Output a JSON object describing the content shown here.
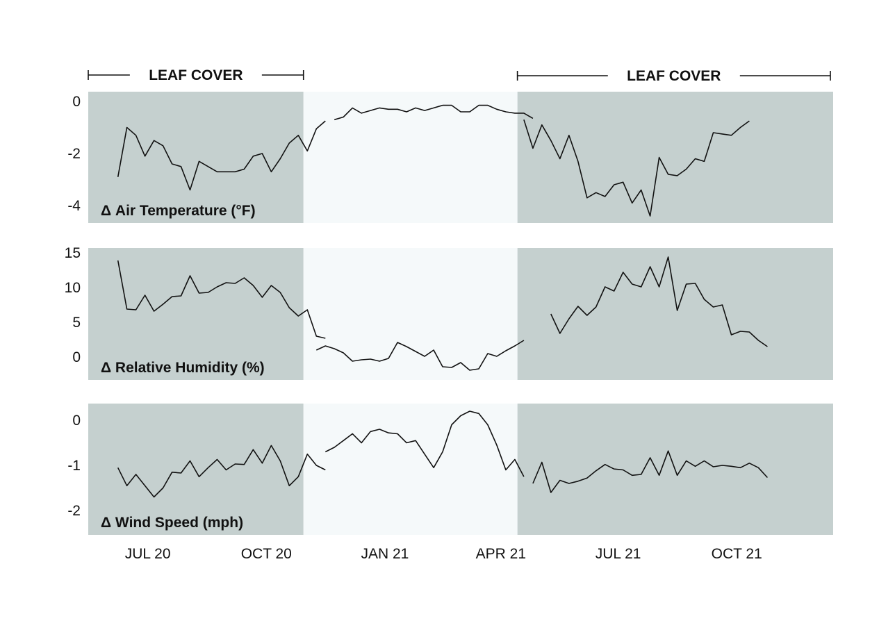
{
  "colors": {
    "leaf_band": "#c5d0cf",
    "bare_band": "#f5f9fa",
    "line": "#111111",
    "text": "#111111"
  },
  "chart_data": {
    "type": "line",
    "leaf_cover_label": "LEAF COVER",
    "leaf_cover_periods": [
      {
        "label": "LEAF COVER",
        "start": "2020-06-01",
        "end": "2020-11-15"
      },
      {
        "label": "LEAF COVER",
        "start": "2021-04-30",
        "end": "2021-12-31"
      }
    ],
    "bare_period": {
      "start": "2020-11-15",
      "end": "2021-04-30"
    },
    "x_range": [
      "2020-06-01",
      "2021-12-31"
    ],
    "x_ticks": [
      {
        "label": "JUL 20",
        "date": "2020-07-01"
      },
      {
        "label": "OCT 20",
        "date": "2020-10-01"
      },
      {
        "label": "JAN 21",
        "date": "2021-01-01"
      },
      {
        "label": "APR 21",
        "date": "2021-04-01"
      },
      {
        "label": "JUL 21",
        "date": "2021-07-01"
      },
      {
        "label": "OCT 21",
        "date": "2021-10-01"
      }
    ],
    "x": [
      "2020-06-24",
      "2020-07-01",
      "2020-07-08",
      "2020-07-15",
      "2020-07-22",
      "2020-07-29",
      "2020-08-05",
      "2020-08-12",
      "2020-08-19",
      "2020-08-26",
      "2020-09-02",
      "2020-09-09",
      "2020-09-16",
      "2020-09-23",
      "2020-09-30",
      "2020-10-07",
      "2020-10-14",
      "2020-10-21",
      "2020-10-28",
      "2020-11-04",
      "2020-11-11",
      "2020-11-18",
      "2020-11-25",
      "2020-12-02",
      "2020-12-09",
      "2020-12-16",
      "2020-12-23",
      "2020-12-30",
      "2021-01-06",
      "2021-01-13",
      "2021-01-20",
      "2021-01-27",
      "2021-02-03",
      "2021-02-10",
      "2021-02-17",
      "2021-02-24",
      "2021-03-03",
      "2021-03-10",
      "2021-03-17",
      "2021-03-24",
      "2021-03-31",
      "2021-04-07",
      "2021-04-14",
      "2021-04-21",
      "2021-04-28",
      "2021-05-05",
      "2021-05-12",
      "2021-05-19",
      "2021-05-26",
      "2021-06-02",
      "2021-06-09",
      "2021-06-16",
      "2021-06-23",
      "2021-06-30",
      "2021-07-07",
      "2021-07-14",
      "2021-07-21",
      "2021-07-28",
      "2021-08-04",
      "2021-08-11",
      "2021-08-18",
      "2021-08-25",
      "2021-09-01",
      "2021-09-08",
      "2021-09-15",
      "2021-09-22",
      "2021-09-29",
      "2021-10-06",
      "2021-10-13",
      "2021-10-20",
      "2021-10-27",
      "2021-11-03",
      "2021-11-10",
      "2021-11-17"
    ],
    "panels": [
      {
        "title": "Δ Air Temperature (°F)",
        "yticks": [
          0,
          -2,
          -4
        ],
        "ytick_labels": [
          "0",
          "-2",
          "-4"
        ],
        "ylim": [
          -4.7,
          0.35
        ],
        "series": [
          {
            "start": "2020-06-24",
            "values": [
              -2.9,
              -1.0,
              -1.3,
              -2.1,
              -1.5,
              -1.7,
              -2.4,
              -2.5,
              -3.4,
              -2.3,
              -2.5,
              -2.7,
              -2.7,
              -2.7,
              -2.6,
              -2.1,
              -2.0,
              -2.7,
              -2.2,
              -1.6,
              -1.3,
              -1.9,
              -1.05,
              -0.75
            ]
          },
          {
            "start": "2020-12-09",
            "values": [
              -0.7,
              -0.6,
              -0.25,
              -0.45,
              -0.35,
              -0.25,
              -0.3,
              -0.3,
              -0.4,
              -0.25,
              -0.35,
              -0.25,
              -0.15,
              -0.15,
              -0.4,
              -0.4,
              -0.15,
              -0.15,
              -0.3,
              -0.4,
              -0.45,
              -0.45,
              -0.65
            ]
          },
          {
            "start": "2021-05-05",
            "values": [
              -0.7,
              -1.8,
              -0.9,
              -1.5,
              -2.2,
              -1.3,
              -2.3,
              -3.7,
              -3.5,
              -3.65,
              -3.2,
              -3.1,
              -3.9,
              -3.4,
              -4.4,
              -2.15,
              -2.8,
              -2.85,
              -2.6,
              -2.2,
              -2.3,
              -1.2,
              -1.25,
              -1.3,
              -1.0,
              -0.75
            ]
          }
        ]
      },
      {
        "title": "Δ Relative Humidity (%)",
        "yticks": [
          15,
          10,
          5,
          0
        ],
        "ytick_labels": [
          "15",
          "10",
          "5",
          "0"
        ],
        "ylim": [
          -3.3,
          15.6
        ],
        "series": [
          {
            "start": "2020-06-24",
            "values": [
              13.9,
              6.9,
              6.8,
              8.9,
              6.6,
              7.6,
              8.7,
              8.8,
              11.7,
              9.2,
              9.3,
              10.1,
              10.7,
              10.6,
              11.4,
              10.3,
              8.6,
              10.3,
              9.3,
              7.1,
              5.9,
              6.8,
              3.0,
              2.7
            ]
          },
          {
            "start": "2020-11-25",
            "values": [
              1.0,
              1.6,
              1.2,
              0.6,
              -0.6,
              -0.4,
              -0.3,
              -0.6,
              -0.2,
              2.1,
              1.5,
              0.8,
              0.1,
              1.0,
              -1.4,
              -1.5,
              -0.8,
              -1.9,
              -1.7,
              0.5,
              0.1,
              0.9,
              1.6,
              2.4
            ]
          },
          {
            "start": "2021-05-26",
            "values": [
              6.2,
              3.4,
              5.5,
              7.3,
              6.0,
              7.2,
              10.1,
              9.5,
              12.2,
              10.5,
              10.1,
              13.0,
              10.1,
              14.4,
              6.7,
              10.5,
              10.6,
              8.3,
              7.2,
              7.5,
              3.2,
              3.7,
              3.6,
              2.4,
              1.5
            ]
          }
        ]
      },
      {
        "title": "Δ Wind Speed (mph)",
        "yticks": [
          0,
          -1,
          -2
        ],
        "ytick_labels": [
          "0",
          "-1",
          "-2"
        ],
        "ylim": [
          -2.55,
          0.35
        ],
        "series": [
          {
            "start": "2020-06-24",
            "values": [
              -1.05,
              -1.45,
              -1.2,
              -1.45,
              -1.7,
              -1.5,
              -1.15,
              -1.17,
              -0.9,
              -1.25,
              -1.05,
              -0.87,
              -1.1,
              -0.97,
              -0.98,
              -0.65,
              -0.95,
              -0.56,
              -0.9,
              -1.45,
              -1.25,
              -0.75,
              -1.0,
              -1.1
            ]
          },
          {
            "start": "2020-12-02",
            "values": [
              -0.7,
              -0.6,
              -0.45,
              -0.3,
              -0.5,
              -0.25,
              -0.2,
              -0.28,
              -0.3,
              -0.5,
              -0.45,
              -0.75,
              -1.05,
              -0.7,
              -0.1,
              0.1,
              0.2,
              0.15,
              -0.1,
              -0.55,
              -1.1,
              -0.87,
              -1.25
            ]
          },
          {
            "start": "2021-05-12",
            "values": [
              -1.4,
              -0.93,
              -1.6,
              -1.33,
              -1.4,
              -1.35,
              -1.28,
              -1.12,
              -0.98,
              -1.08,
              -1.1,
              -1.22,
              -1.2,
              -0.83,
              -1.22,
              -0.68,
              -1.22,
              -0.9,
              -1.02,
              -0.9,
              -1.03,
              -1.0,
              -1.02,
              -1.05,
              -0.95,
              -1.05,
              -1.27
            ]
          }
        ]
      }
    ]
  }
}
